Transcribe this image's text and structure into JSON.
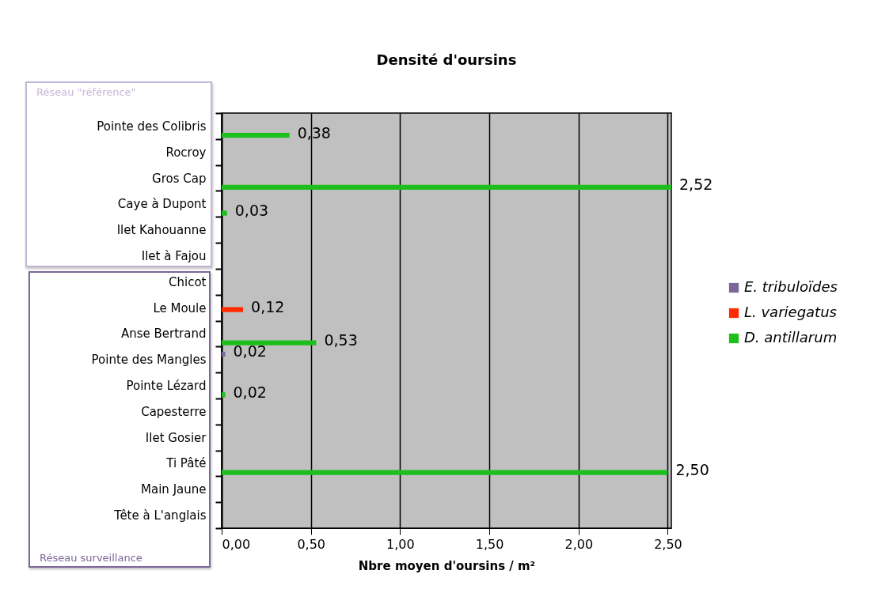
{
  "chart_data": {
    "type": "bar",
    "orientation": "horizontal",
    "title": "Densité d'oursins",
    "xlabel": "Nbre moyen d'oursins / m²",
    "categories": [
      "Pointe des Colibris",
      "Rocroy",
      "Gros Cap",
      "Caye à Dupont",
      "Ilet Kahouanne",
      "Ilet à Fajou",
      "Chicot",
      "Le Moule",
      "Anse Bertrand",
      "Pointe des Mangles",
      "Pointe Lézard",
      "Capesterre",
      "Ilet Gosier",
      "Ti Pâté",
      "Main Jaune",
      "Tête à L'anglais"
    ],
    "series": [
      {
        "name": "E. tribuloïdes",
        "color": "#7a6699",
        "values": [
          null,
          null,
          null,
          null,
          null,
          null,
          null,
          null,
          null,
          0.02,
          null,
          null,
          null,
          null,
          null,
          null
        ],
        "value_labels": [
          null,
          null,
          null,
          null,
          null,
          null,
          null,
          null,
          null,
          "0,02",
          null,
          null,
          null,
          null,
          null,
          null
        ]
      },
      {
        "name": "L. variegatus",
        "color": "#ff2a00",
        "values": [
          null,
          null,
          null,
          null,
          null,
          null,
          null,
          0.12,
          null,
          null,
          null,
          null,
          null,
          null,
          null,
          null
        ],
        "value_labels": [
          null,
          null,
          null,
          null,
          null,
          null,
          null,
          "0,12",
          null,
          null,
          null,
          null,
          null,
          null,
          null,
          null
        ]
      },
      {
        "name": "D. antillarum",
        "color": "#1dbf1d",
        "values": [
          0.38,
          null,
          2.52,
          0.03,
          null,
          null,
          null,
          null,
          0.53,
          null,
          0.02,
          null,
          null,
          2.5,
          null,
          null
        ],
        "value_labels": [
          "0,38",
          null,
          "2,52",
          "0,03",
          null,
          null,
          null,
          null,
          "0,53",
          null,
          "0,02",
          null,
          null,
          "2,50",
          null,
          null
        ]
      }
    ],
    "xlim": [
      0,
      2.52
    ],
    "xticks": [
      {
        "value": 0,
        "label": "0,00"
      },
      {
        "value": 0.5,
        "label": "0,50"
      },
      {
        "value": 1,
        "label": "1,00"
      },
      {
        "value": 1.5,
        "label": "1,50"
      },
      {
        "value": 2,
        "label": "2,00"
      },
      {
        "value": 2.5,
        "label": "2,50"
      }
    ],
    "grid": "x",
    "legend": "right",
    "annotations": [
      "Réseau \"référence\"",
      "Réseau surveillance"
    ]
  }
}
